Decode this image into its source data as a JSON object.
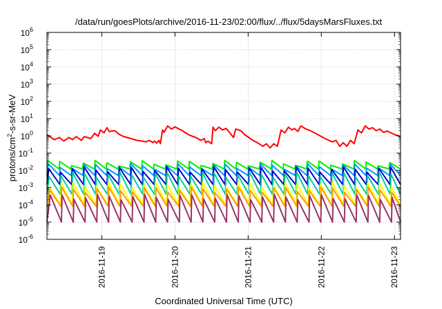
{
  "chart_data": {
    "type": "line",
    "title": "/data/run/goesPlots/archive/2016-11-23/02:00/flux/../flux/5daysMarsFluxes.txt",
    "xlabel": "Coordinated Universal Time (UTC)",
    "ylabel_parts": {
      "base": "protons/cm",
      "sup": "2",
      "rest": "-s-sr-MeV"
    },
    "yscale": "log",
    "ylim": [
      1e-06,
      1000000.0
    ],
    "y_ticks": [
      {
        "exp": "-6"
      },
      {
        "exp": "-5"
      },
      {
        "exp": "-4"
      },
      {
        "exp": "-3"
      },
      {
        "exp": "-2"
      },
      {
        "exp": "-1"
      },
      {
        "exp": "0"
      },
      {
        "exp": "1"
      },
      {
        "exp": "2"
      },
      {
        "exp": "3"
      },
      {
        "exp": "4"
      },
      {
        "exp": "5"
      },
      {
        "exp": "6"
      }
    ],
    "y_tick_base": "10",
    "xlim": [
      "2016-11-18 06:00",
      "2016-11-23 02:00"
    ],
    "x_ticks": [
      {
        "label": "2016-11-19",
        "day": 1
      },
      {
        "label": "2016-11-20",
        "day": 2
      },
      {
        "label": "2016-11-21",
        "day": 3
      },
      {
        "label": "2016-11-22",
        "day": 4
      },
      {
        "label": "2016-11-23",
        "day": 5
      }
    ],
    "grid": true,
    "legend": "none",
    "x_start_day": 0.25,
    "x_end_day": 5.083,
    "series": [
      {
        "color": "#ff0000",
        "x_day": [
          0.25,
          0.35,
          0.42,
          0.48,
          0.55,
          0.6,
          0.65,
          0.72,
          0.76,
          0.85,
          0.9,
          0.95,
          0.98,
          1.03,
          1.07,
          1.1,
          1.18,
          1.23,
          1.3,
          1.4,
          1.48,
          1.55,
          1.6,
          1.65,
          1.7,
          1.72,
          1.75,
          1.78,
          1.8,
          1.83,
          1.85,
          1.9,
          1.95,
          2.0,
          2.1,
          2.18,
          2.25,
          2.3,
          2.35,
          2.4,
          2.42,
          2.45,
          2.5,
          2.52,
          2.55,
          2.6,
          2.65,
          2.7,
          2.75,
          2.8,
          2.83,
          2.9,
          2.95,
          3.05,
          3.15,
          3.2,
          3.25,
          3.3,
          3.35,
          3.4,
          3.45,
          3.5,
          3.55,
          3.6,
          3.63,
          3.68,
          3.72,
          3.78,
          3.85,
          3.95,
          4.05,
          4.15,
          4.2,
          4.25,
          4.3,
          4.35,
          4.4,
          4.45,
          4.5,
          4.55,
          4.6,
          4.65,
          4.7,
          4.75,
          4.8,
          4.85,
          4.9,
          5.0,
          5.083
        ],
        "values": [
          1.2,
          0.6,
          0.8,
          0.5,
          0.8,
          0.6,
          0.9,
          0.55,
          0.9,
          0.7,
          1.4,
          0.95,
          2.2,
          1.5,
          3.0,
          1.8,
          2.0,
          1.3,
          0.9,
          0.7,
          0.55,
          0.5,
          0.45,
          0.55,
          0.4,
          0.5,
          0.38,
          0.55,
          0.35,
          2.2,
          1.6,
          3.8,
          2.5,
          3.3,
          2.0,
          1.2,
          0.9,
          0.75,
          0.55,
          0.7,
          0.4,
          0.5,
          0.35,
          3.2,
          2.0,
          3.2,
          2.2,
          2.7,
          1.5,
          0.8,
          2.5,
          2.0,
          1.2,
          0.6,
          0.35,
          0.25,
          0.35,
          0.2,
          0.35,
          0.25,
          2.2,
          1.5,
          3.2,
          2.2,
          2.7,
          1.8,
          3.8,
          2.6,
          2.0,
          1.2,
          0.7,
          0.45,
          0.55,
          0.25,
          0.4,
          0.25,
          0.55,
          0.35,
          2.2,
          1.5,
          3.8,
          2.5,
          3.0,
          2.0,
          2.5,
          1.6,
          1.9,
          1.2,
          0.9
        ]
      },
      {
        "color": "#00ee00",
        "base": 0.012,
        "peak": 0.028
      },
      {
        "color": "#0099ff",
        "base": 0.005,
        "peak": 0.018
      },
      {
        "color": "#0000cc",
        "base": 0.0015,
        "peak": 0.012
      },
      {
        "color": "#00cc99",
        "base": 0.0004,
        "peak": 0.006
      },
      {
        "color": "#ffff00",
        "base": 0.0001,
        "peak": 0.0015
      },
      {
        "color": "#ff9900",
        "base": 8e-05,
        "peak": 0.0008
      },
      {
        "color": "#993366",
        "base": 1e-05,
        "peak": 0.0003
      }
    ],
    "sawtooth_cycles": 30
  }
}
